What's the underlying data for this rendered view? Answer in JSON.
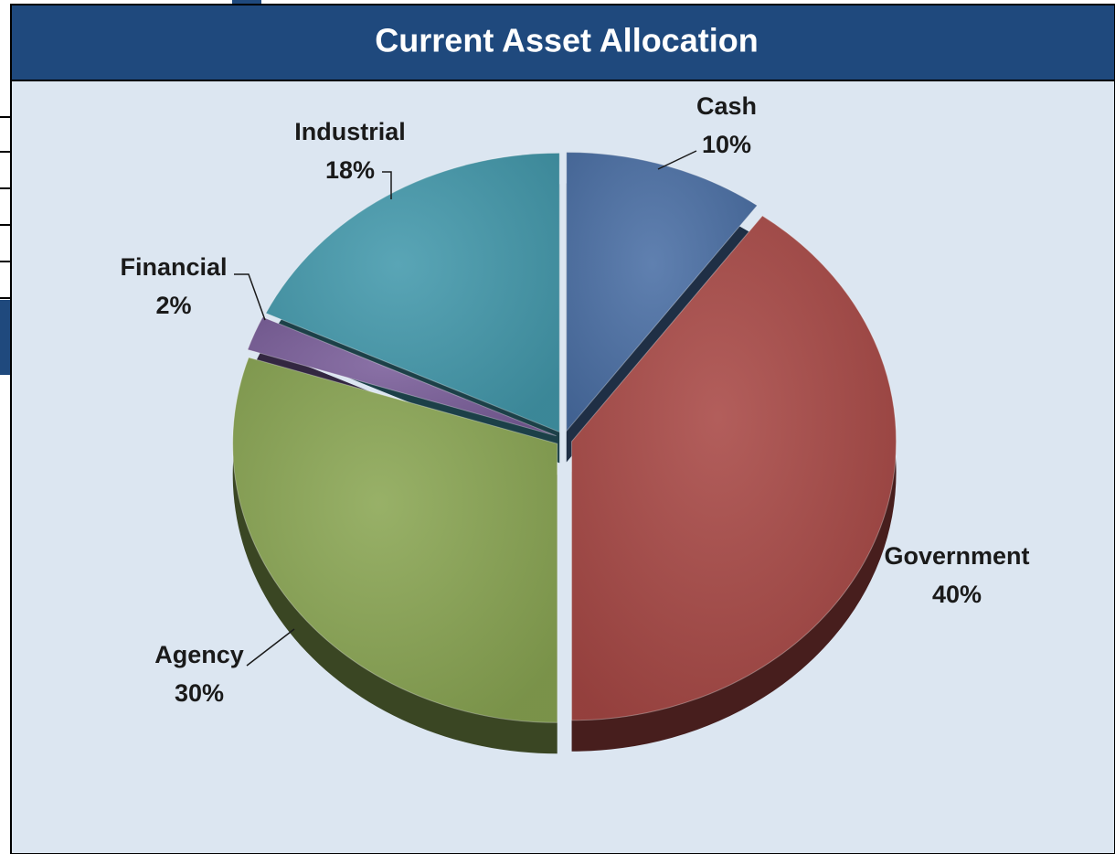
{
  "chart_data": {
    "type": "pie",
    "title": "Current Asset Allocation",
    "categories": [
      "Cash",
      "Government",
      "Agency",
      "Financial",
      "Industrial"
    ],
    "values": [
      10,
      40,
      30,
      2,
      18
    ],
    "value_labels": [
      "10%",
      "40%",
      "30%",
      "2%",
      "18%"
    ],
    "colors": [
      "#4a6fa5",
      "#a84845",
      "#8aa653",
      "#7a5e9a",
      "#4399ac"
    ]
  }
}
